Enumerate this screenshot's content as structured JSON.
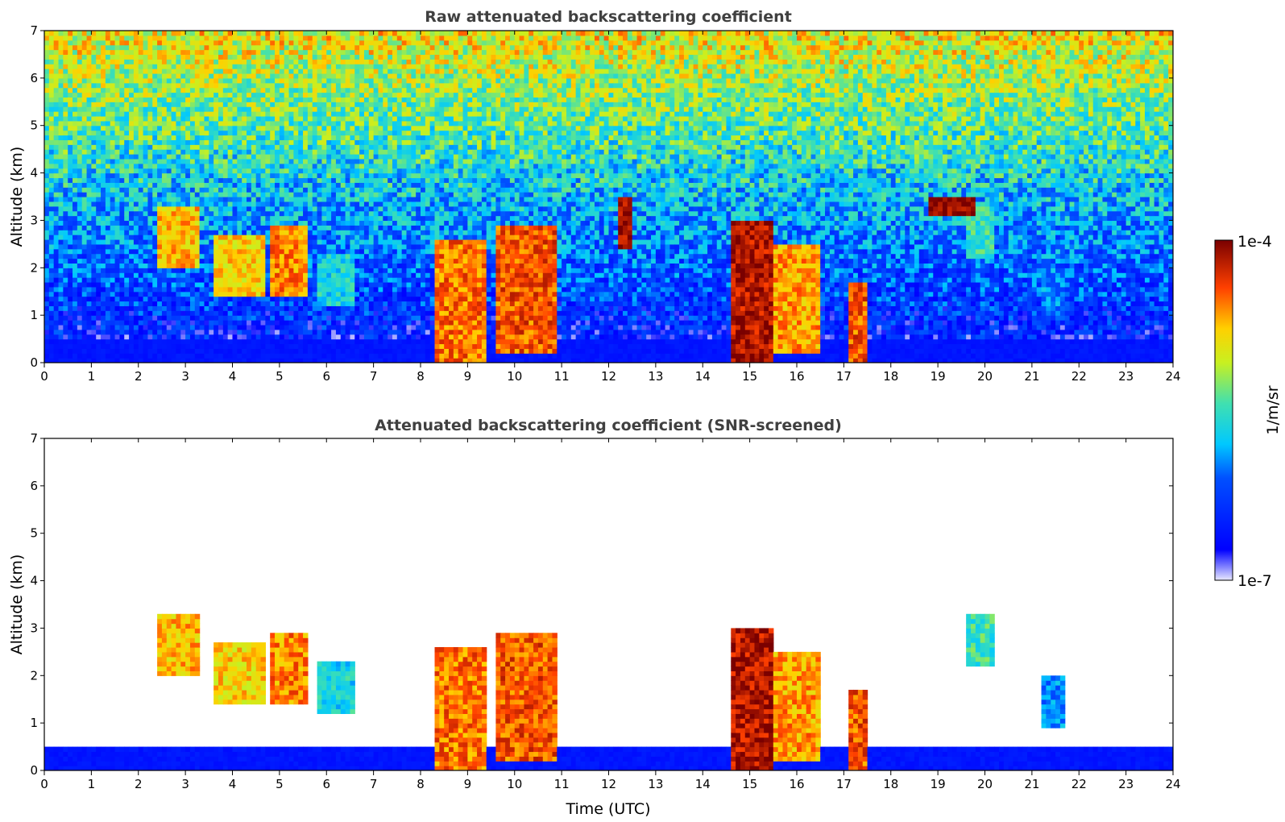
{
  "chart_data": [
    {
      "type": "heatmap",
      "title": "Raw attenuated backscattering coefficient",
      "xlabel": "",
      "ylabel": "Altitude (km)",
      "xlim": [
        0,
        24
      ],
      "ylim": [
        0,
        7
      ],
      "xticks": [
        "0",
        "1",
        "2",
        "3",
        "4",
        "5",
        "6",
        "7",
        "8",
        "9",
        "10",
        "11",
        "12",
        "13",
        "14",
        "15",
        "16",
        "17",
        "18",
        "19",
        "20",
        "21",
        "22",
        "23",
        "24"
      ],
      "yticks": [
        "0",
        "1",
        "2",
        "3",
        "4",
        "5",
        "6",
        "7"
      ],
      "screened": false,
      "features": [
        {
          "t0": 2.4,
          "t1": 3.3,
          "z0": 2.0,
          "z1": 3.3,
          "level": 0.75
        },
        {
          "t0": 3.6,
          "t1": 4.7,
          "z0": 1.4,
          "z1": 2.7,
          "level": 0.72
        },
        {
          "t0": 4.8,
          "t1": 5.6,
          "z0": 1.4,
          "z1": 2.9,
          "level": 0.8
        },
        {
          "t0": 5.8,
          "t1": 6.6,
          "z0": 1.2,
          "z1": 2.3,
          "level": 0.45
        },
        {
          "t0": 8.3,
          "t1": 9.4,
          "z0": 0.0,
          "z1": 2.6,
          "level": 0.82
        },
        {
          "t0": 9.6,
          "t1": 10.9,
          "z0": 0.2,
          "z1": 2.9,
          "level": 0.85
        },
        {
          "t0": 12.2,
          "t1": 12.5,
          "z0": 2.4,
          "z1": 3.5,
          "level": 0.97
        },
        {
          "t0": 14.6,
          "t1": 15.5,
          "z0": 0.0,
          "z1": 3.0,
          "level": 0.95
        },
        {
          "t0": 15.5,
          "t1": 16.5,
          "z0": 0.2,
          "z1": 2.5,
          "level": 0.78
        },
        {
          "t0": 17.1,
          "t1": 17.5,
          "z0": 0.0,
          "z1": 1.7,
          "level": 0.85
        },
        {
          "t0": 18.8,
          "t1": 19.8,
          "z0": 3.15,
          "z1": 3.5,
          "level": 1.0
        },
        {
          "t0": 19.6,
          "t1": 20.2,
          "z0": 2.2,
          "z1": 3.3,
          "level": 0.5
        },
        {
          "t0": 21.2,
          "t1": 21.7,
          "z0": 1.0,
          "z1": 2.0,
          "level": 0.35
        }
      ]
    },
    {
      "type": "heatmap",
      "title": "Attenuated backscattering coefficient (SNR-screened)",
      "xlabel": "Time (UTC)",
      "ylabel": "Altitude (km)",
      "xlim": [
        0,
        24
      ],
      "ylim": [
        0,
        7
      ],
      "xticks": [
        "0",
        "1",
        "2",
        "3",
        "4",
        "5",
        "6",
        "7",
        "8",
        "9",
        "10",
        "11",
        "12",
        "13",
        "14",
        "15",
        "16",
        "17",
        "18",
        "19",
        "20",
        "21",
        "22",
        "23",
        "24"
      ],
      "yticks": [
        "0",
        "1",
        "2",
        "3",
        "4",
        "5",
        "6",
        "7"
      ],
      "screened": true,
      "features": [
        {
          "t0": 2.4,
          "t1": 3.3,
          "z0": 2.0,
          "z1": 3.3,
          "level": 0.75
        },
        {
          "t0": 3.6,
          "t1": 4.7,
          "z0": 1.4,
          "z1": 2.7,
          "level": 0.72
        },
        {
          "t0": 4.8,
          "t1": 5.6,
          "z0": 1.4,
          "z1": 2.9,
          "level": 0.8
        },
        {
          "t0": 5.8,
          "t1": 6.6,
          "z0": 1.2,
          "z1": 2.3,
          "level": 0.45
        },
        {
          "t0": 8.3,
          "t1": 9.4,
          "z0": 0.0,
          "z1": 2.6,
          "level": 0.82
        },
        {
          "t0": 9.6,
          "t1": 10.9,
          "z0": 0.2,
          "z1": 2.9,
          "level": 0.85
        },
        {
          "t0": 14.6,
          "t1": 15.5,
          "z0": 0.0,
          "z1": 3.0,
          "level": 0.95
        },
        {
          "t0": 15.5,
          "t1": 16.5,
          "z0": 0.2,
          "z1": 2.5,
          "level": 0.78
        },
        {
          "t0": 17.1,
          "t1": 17.5,
          "z0": 0.0,
          "z1": 1.7,
          "level": 0.85
        },
        {
          "t0": 19.6,
          "t1": 20.2,
          "z0": 2.2,
          "z1": 3.3,
          "level": 0.5
        },
        {
          "t0": 21.2,
          "t1": 21.7,
          "z0": 0.9,
          "z1": 2.0,
          "level": 0.35
        }
      ]
    }
  ],
  "colorbar": {
    "label": "1/m/sr",
    "max_label": "1e-4",
    "min_label": "1e-7",
    "scale": "log",
    "range": [
      1e-07,
      0.0001
    ],
    "colormap": "jet"
  }
}
